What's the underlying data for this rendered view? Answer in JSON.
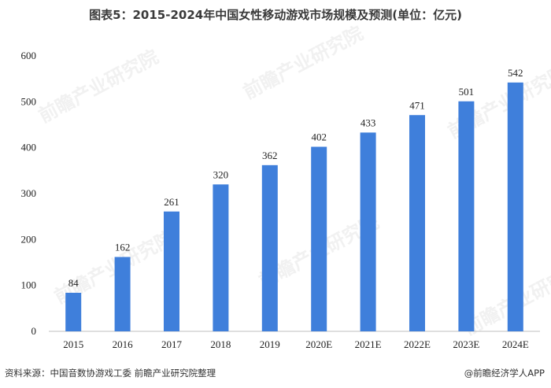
{
  "title": "图表5：2015-2024年中国女性移动游戏市场规模及预测(单位：亿元)",
  "source": "资料来源：中国音数协游戏工委 前瞻产业研究院整理",
  "brand": "@前瞻经济学人APP",
  "watermark": "前瞻产业研究院",
  "colors": {
    "bar": "#3f7fdb",
    "axis": "#bfbfbf"
  },
  "chart_data": {
    "type": "bar",
    "categories": [
      "2015",
      "2016",
      "2017",
      "2018",
      "2019",
      "2020E",
      "2021E",
      "2022E",
      "2023E",
      "2024E"
    ],
    "values": [
      84,
      162,
      261,
      320,
      362,
      402,
      433,
      471,
      501,
      542
    ],
    "yticks": [
      0,
      100,
      200,
      300,
      400,
      500,
      600
    ],
    "ylim": [
      0,
      600
    ],
    "data_labels": true,
    "grid": false
  }
}
